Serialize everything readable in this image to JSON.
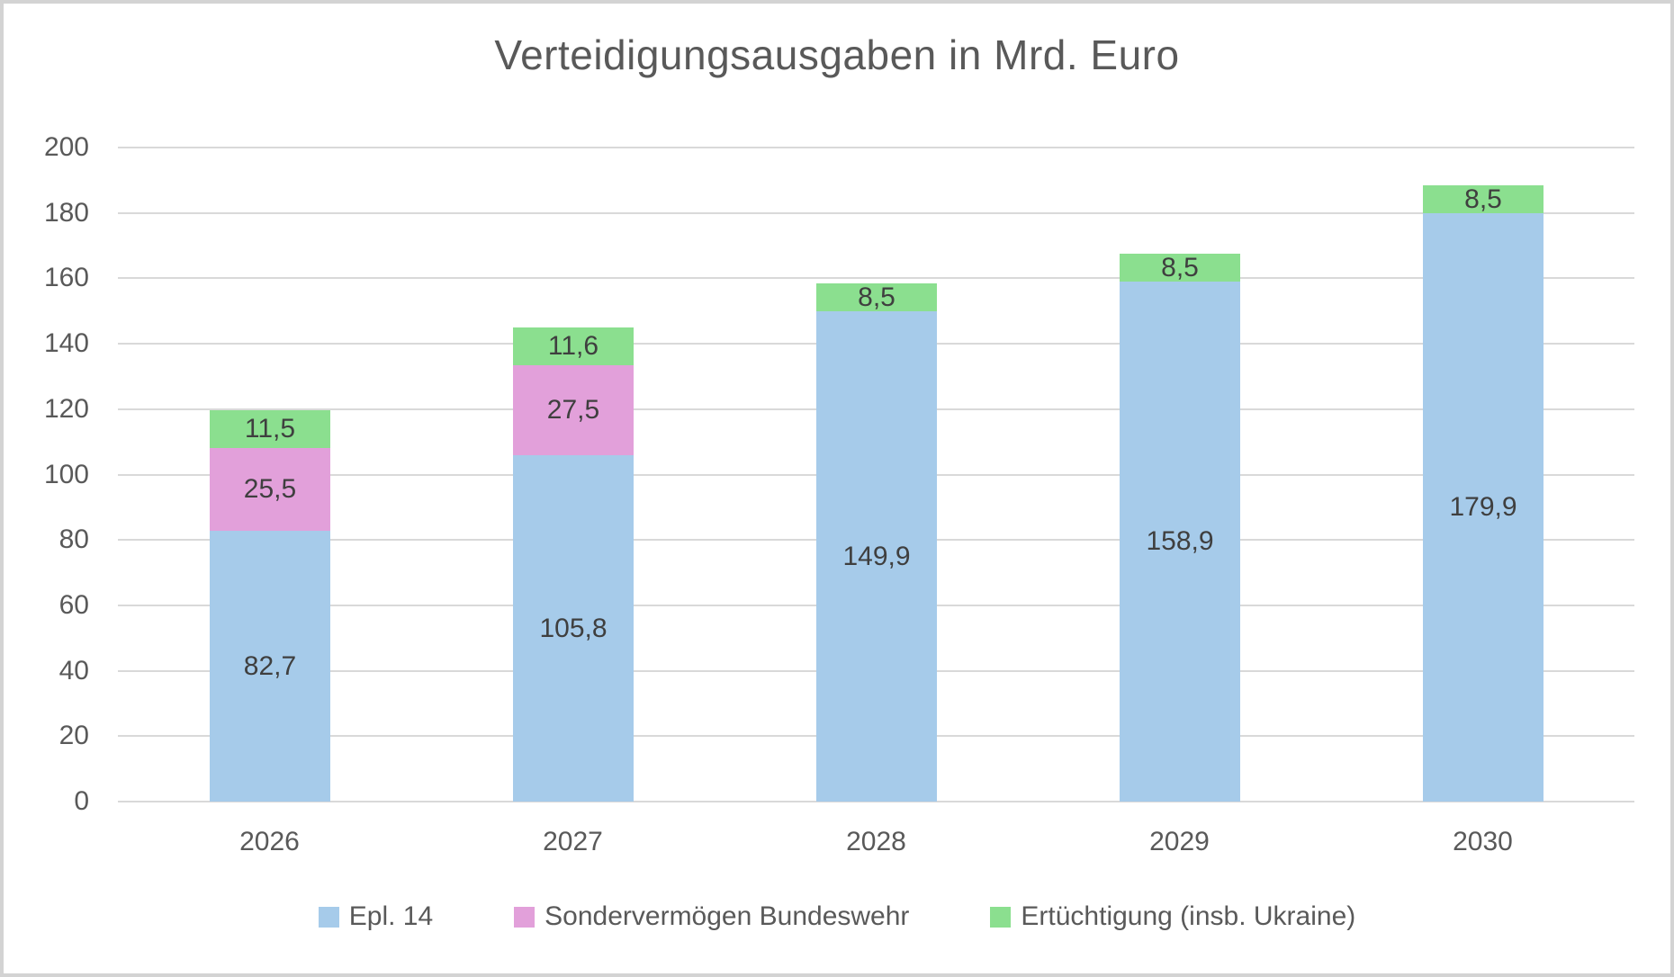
{
  "title": "Verteidigungsausgaben in Mrd. Euro",
  "colors": {
    "epl14": "#a6cbea",
    "sondervermoegen": "#e2a0da",
    "ertuechtigung": "#8bdf8f",
    "gridline": "#d9d9d9",
    "axis_text": "#595959",
    "bar_label_text": "#3f3f3f",
    "title_text": "#595959",
    "frame_border": "#d3d3d3"
  },
  "chart_data": {
    "type": "bar",
    "stacked": true,
    "title": "Verteidigungsausgaben in Mrd. Euro",
    "categories": [
      "2026",
      "2027",
      "2028",
      "2029",
      "2030"
    ],
    "series": [
      {
        "name": "Epl. 14",
        "color": "#a6cbea",
        "values": [
          82.7,
          105.8,
          149.9,
          158.9,
          179.9
        ],
        "labels": [
          "82,7",
          "105,8",
          "149,9",
          "158,9",
          "179,9"
        ]
      },
      {
        "name": "Sondervermögen Bundeswehr",
        "color": "#e2a0da",
        "values": [
          25.5,
          27.5,
          0,
          0,
          0
        ],
        "labels": [
          "25,5",
          "27,5",
          "",
          "",
          ""
        ]
      },
      {
        "name": "Ertüchtigung (insb. Ukraine)",
        "color": "#8bdf8f",
        "values": [
          11.5,
          11.6,
          8.5,
          8.5,
          8.5
        ],
        "labels": [
          "11,5",
          "11,6",
          "8,5",
          "8,5",
          "8,5"
        ]
      }
    ],
    "xlabel": "",
    "ylabel": "",
    "ylim": [
      0,
      200
    ],
    "ytick_step": 20,
    "yticks": [
      0,
      20,
      40,
      60,
      80,
      100,
      120,
      140,
      160,
      180,
      200
    ],
    "grid": true,
    "legend_position": "bottom",
    "decimal_separator": ","
  }
}
